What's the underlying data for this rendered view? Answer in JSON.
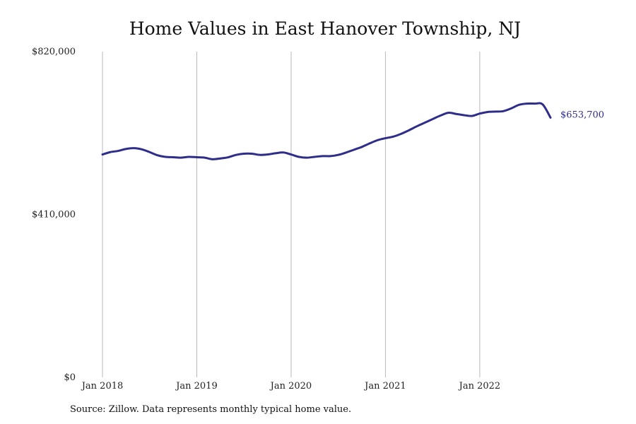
{
  "chart_data": {
    "type": "line",
    "title": "Home Values in East Hanover Township, NJ",
    "xlabel": "",
    "ylabel": "",
    "ylim": [
      0,
      820000
    ],
    "y_ticks": [
      0,
      410000,
      820000
    ],
    "y_tick_labels": [
      "$0",
      "$410,000",
      "$820,000"
    ],
    "x_ticks": [
      "2018-01",
      "2019-01",
      "2020-01",
      "2021-01",
      "2022-01"
    ],
    "x_tick_labels": [
      "Jan 2018",
      "Jan 2019",
      "Jan 2020",
      "Jan 2021",
      "Jan 2022"
    ],
    "x_range": [
      "2018-01",
      "2022-10"
    ],
    "grid": "vertical lines at x ticks",
    "line_color": "#2e2e8a",
    "end_label": "$653,700",
    "series": [
      {
        "x": [
          "2018-01",
          "2018-02",
          "2018-03",
          "2018-04",
          "2018-05",
          "2018-06",
          "2018-07",
          "2018-08",
          "2018-09",
          "2018-10",
          "2018-11",
          "2018-12",
          "2019-01",
          "2019-02",
          "2019-03",
          "2019-04",
          "2019-05",
          "2019-06",
          "2019-07",
          "2019-08",
          "2019-09",
          "2019-10",
          "2019-11",
          "2019-12",
          "2020-01",
          "2020-02",
          "2020-03",
          "2020-04",
          "2020-05",
          "2020-06",
          "2020-07",
          "2020-08",
          "2020-09",
          "2020-10",
          "2020-11",
          "2020-12",
          "2021-01",
          "2021-02",
          "2021-03",
          "2021-04",
          "2021-05",
          "2021-06",
          "2021-07",
          "2021-08",
          "2021-09",
          "2021-10",
          "2021-11",
          "2021-12",
          "2022-01",
          "2022-02",
          "2022-03",
          "2022-04",
          "2022-05",
          "2022-06",
          "2022-07",
          "2022-08",
          "2022-09",
          "2022-10"
        ],
        "values": [
          561000,
          567000,
          570000,
          575000,
          577000,
          574000,
          567000,
          559000,
          555000,
          554000,
          553000,
          555000,
          554000,
          553000,
          549000,
          551000,
          554000,
          560000,
          563000,
          563000,
          560000,
          561000,
          564000,
          566000,
          561000,
          555000,
          553000,
          555000,
          557000,
          557000,
          560000,
          566000,
          573000,
          580000,
          589000,
          597000,
          602000,
          606000,
          613000,
          622000,
          632000,
          641000,
          650000,
          659000,
          666000,
          663000,
          660000,
          658000,
          664000,
          668000,
          669000,
          670000,
          677000,
          686000,
          689000,
          689000,
          687000,
          653700
        ]
      }
    ]
  },
  "source": "Source: Zillow. Data represents monthly typical home value."
}
